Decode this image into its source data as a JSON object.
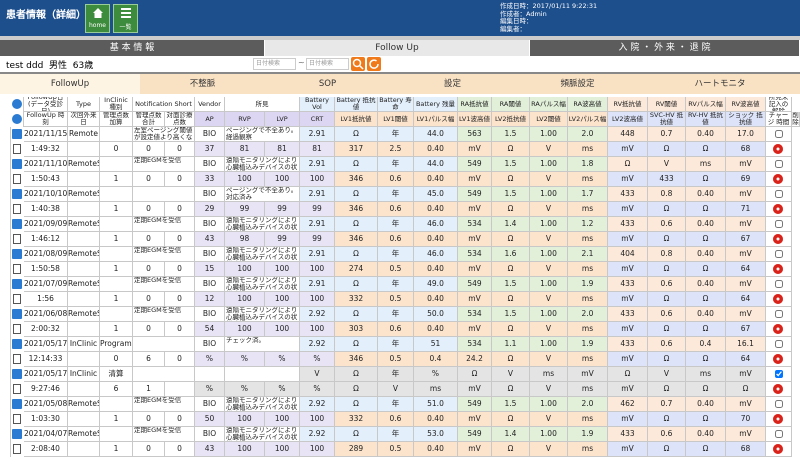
{
  "header": {
    "title": "患者情報（詳細）",
    "buttons": [
      "home",
      "一覧"
    ],
    "meta": [
      "作成日時：2017/01/11 9:22:31",
      "作成者：Admin",
      "編集日時：",
      "編集者："
    ]
  },
  "tabs": [
    "基 本 情 報",
    "Follow Up",
    "入 院 ・ 外 来 ・ 退 院"
  ],
  "active_tab": 1,
  "patient": {
    "name": "test ddd",
    "sex": "男性",
    "age": "63歳"
  },
  "search": [
    "日付検索",
    "~",
    "日付検索"
  ],
  "subtabs": [
    "FollowUp",
    "不整脈",
    "SOP",
    "設定",
    "頻脈設定",
    "ハートモニタ"
  ],
  "active_subtab": 0,
  "table": {
    "header_top": [
      "FollowUp日(データ受診日)",
      "Type",
      "InClinic 種別",
      "Notification Short",
      "Vendor",
      "所見",
      "Battery Vol",
      "Battery 抵抗値",
      "Battery 寿命",
      "Battery 残量",
      "RA抵抗値",
      "RA閾値",
      "RAパルス幅",
      "RA波高値",
      "RV抵抗値",
      "RV閾値",
      "RVパルス幅",
      "RV波高値",
      "所見未記入の解除"
    ],
    "header_bottom": [
      "FollowUp 時刻",
      "次回外来日",
      "管理点数加算",
      "管理点数合計",
      "対面診療点数",
      "AP",
      "RVP",
      "LVP",
      "CRT",
      "LV1抵抗値",
      "LV1閾値",
      "LV1パルス幅",
      "LV1波高値",
      "LV2抵抗値",
      "LV2閾値",
      "LV2パルス幅",
      "LV2波高値",
      "SVC-HV 抵抗値",
      "RV-HV 抵抗値",
      "ショック 抵抗値",
      "チャージ 時間",
      "削除"
    ],
    "records": [
      {
        "top": [
          "2021/11/15",
          "Remote",
          "",
          "左室ページング閾値が設定値より高くなりました",
          "BIO",
          "ページングで不全あり。経過観察",
          "2.91",
          "Ω",
          "年",
          "44.0",
          "563",
          "1.5",
          "1.00",
          "2.0",
          "448",
          "0.7",
          "0.40",
          "17.0"
        ],
        "bottom": [
          "1:49:32",
          "",
          "0",
          "0",
          "0",
          "37",
          "81",
          "81",
          "81",
          "317",
          "2.5",
          "0.40",
          "mV",
          "Ω",
          "V",
          "ms",
          "mV",
          "Ω",
          "Ω",
          "68",
          "9.3"
        ],
        "checked": false
      },
      {
        "top": [
          "2021/11/10",
          "RemoteScheduled",
          "",
          "定期EGMを受信",
          "BIO",
          "遠隔モニタリングにより心臓植込みデバイスの状態確認",
          "2.91",
          "Ω",
          "年",
          "44.0",
          "549",
          "1.5",
          "1.00",
          "1.8",
          "Ω",
          "V",
          "ms",
          "mV"
        ],
        "bottom": [
          "1:50:43",
          "",
          "1",
          "0",
          "0",
          "33",
          "100",
          "100",
          "100",
          "346",
          "0.6",
          "0.40",
          "mV",
          "Ω",
          "V",
          "ms",
          "mV",
          "433",
          "Ω",
          "69",
          "9.3"
        ],
        "checked": false
      },
      {
        "top": [
          "2021/10/10",
          "RemoteScheduled",
          "",
          "",
          "BIO",
          "ページングで不全あり。対応済み",
          "2.91",
          "Ω",
          "年",
          "45.0",
          "549",
          "1.5",
          "1.00",
          "1.7",
          "433",
          "0.8",
          "0.40",
          "mV"
        ],
        "bottom": [
          "1:40:38",
          "",
          "1",
          "0",
          "0",
          "29",
          "99",
          "99",
          "99",
          "346",
          "0.6",
          "0.40",
          "mV",
          "Ω",
          "V",
          "ms",
          "mV",
          "Ω",
          "Ω",
          "71",
          "9.3"
        ],
        "checked": false
      },
      {
        "top": [
          "2021/09/09",
          "RemoteScheduled",
          "",
          "定期EGMを受信",
          "BIO",
          "遠隔モニタリングにより心臓植込みデバイスの状態確認",
          "2.91",
          "Ω",
          "年",
          "46.0",
          "534",
          "1.4",
          "1.00",
          "1.2",
          "433",
          "0.6",
          "0.40",
          "mV"
        ],
        "bottom": [
          "1:46:12",
          "",
          "1",
          "0",
          "0",
          "43",
          "98",
          "99",
          "99",
          "346",
          "0.6",
          "0.40",
          "mV",
          "Ω",
          "V",
          "ms",
          "mV",
          "Ω",
          "Ω",
          "67",
          "9.3"
        ],
        "checked": false
      },
      {
        "top": [
          "2021/08/09",
          "RemoteScheduled",
          "",
          "定期EGMを受信",
          "BIO",
          "遠隔モニタリングにより心臓植込みデバイスの状態確認",
          "2.91",
          "Ω",
          "年",
          "46.0",
          "534",
          "1.6",
          "1.00",
          "2.1",
          "404",
          "0.8",
          "0.40",
          "mV"
        ],
        "bottom": [
          "1:50:58",
          "",
          "1",
          "0",
          "0",
          "15",
          "100",
          "100",
          "100",
          "274",
          "0.5",
          "0.40",
          "mV",
          "Ω",
          "V",
          "ms",
          "mV",
          "Ω",
          "Ω",
          "64",
          "9.3"
        ],
        "checked": false
      },
      {
        "top": [
          "2021/07/09",
          "RemoteScheduled",
          "",
          "定期EGMを受信",
          "BIO",
          "遠隔モニタリングにより心臓植込みデバイスの状態確認",
          "2.91",
          "Ω",
          "年",
          "49.0",
          "549",
          "1.5",
          "1.00",
          "1.9",
          "433",
          "0.6",
          "0.40",
          "mV"
        ],
        "bottom": [
          "1:56",
          "",
          "1",
          "0",
          "0",
          "12",
          "100",
          "100",
          "100",
          "332",
          "0.5",
          "0.40",
          "mV",
          "Ω",
          "V",
          "ms",
          "mV",
          "Ω",
          "Ω",
          "64",
          "9.3"
        ],
        "checked": false
      },
      {
        "top": [
          "2021/06/08",
          "RemoteScheduled",
          "",
          "定期EGMを受信",
          "BIO",
          "遠隔モニタリングにより心臓植込みデバイスの状態確認",
          "2.92",
          "Ω",
          "年",
          "50.0",
          "534",
          "1.5",
          "1.00",
          "2.0",
          "433",
          "0.6",
          "0.40",
          "mV"
        ],
        "bottom": [
          "2:00:32",
          "",
          "1",
          "0",
          "0",
          "54",
          "100",
          "100",
          "100",
          "303",
          "0.6",
          "0.40",
          "mV",
          "Ω",
          "V",
          "ms",
          "mV",
          "Ω",
          "Ω",
          "67",
          "9.3"
        ],
        "checked": false
      },
      {
        "top": [
          "2021/05/17",
          "InClinic",
          "Programmer",
          "",
          "BIO",
          "チェック済。",
          "2.92",
          "Ω",
          "年",
          "51",
          "534",
          "1.1",
          "1.00",
          "1.9",
          "433",
          "0.6",
          "0.4",
          "16.1"
        ],
        "bottom": [
          "12:14:33",
          "",
          "0",
          "6",
          "0",
          "%",
          "%",
          "%",
          "%",
          "346",
          "0.5",
          "0.4",
          "24.2",
          "Ω",
          "V",
          "ms",
          "mV",
          "Ω",
          "Ω",
          "64",
          "9.3"
        ],
        "checked": false
      },
      {
        "top": [
          "2021/05/17",
          "InClinic",
          "清算",
          "",
          "",
          "",
          "V",
          "Ω",
          "年",
          "%",
          "Ω",
          "V",
          "ms",
          "mV",
          "Ω",
          "V",
          "ms",
          "mV"
        ],
        "bottom": [
          "9:27:46",
          "",
          "6",
          "1",
          "",
          "%",
          "%",
          "%",
          "%",
          "Ω",
          "V",
          "ms",
          "mV",
          "Ω",
          "V",
          "ms",
          "mV",
          "Ω",
          "Ω",
          "Ω",
          "sec"
        ],
        "checked": true
      },
      {
        "top": [
          "2021/05/08",
          "RemoteScheduled",
          "",
          "定期EGMを受信",
          "BIO",
          "遠隔モニタリングにより心臓植込みデバイスの状態確認",
          "2.92",
          "Ω",
          "年",
          "51.0",
          "549",
          "1.5",
          "1.00",
          "2.0",
          "462",
          "0.7",
          "0.40",
          "mV"
        ],
        "bottom": [
          "1:03:30",
          "",
          "1",
          "0",
          "0",
          "50",
          "100",
          "100",
          "100",
          "332",
          "0.6",
          "0.40",
          "mV",
          "Ω",
          "V",
          "ms",
          "mV",
          "Ω",
          "Ω",
          "70",
          "9.3"
        ],
        "checked": false
      },
      {
        "top": [
          "2021/04/07",
          "RemoteScheduled",
          "",
          "定期EGMを受信",
          "BIO",
          "遠隔モニタリングにより心臓植込みデバイスの状態確認",
          "2.92",
          "Ω",
          "年",
          "53.0",
          "549",
          "1.4",
          "1.00",
          "1.9",
          "433",
          "0.6",
          "0.40",
          "mV"
        ],
        "bottom": [
          "2:08:40",
          "",
          "1",
          "0",
          "0",
          "43",
          "100",
          "100",
          "100",
          "289",
          "0.5",
          "0.40",
          "mV",
          "Ω",
          "V",
          "ms",
          "mV",
          "Ω",
          "Ω",
          "68",
          "9.3"
        ],
        "checked": false
      }
    ]
  }
}
